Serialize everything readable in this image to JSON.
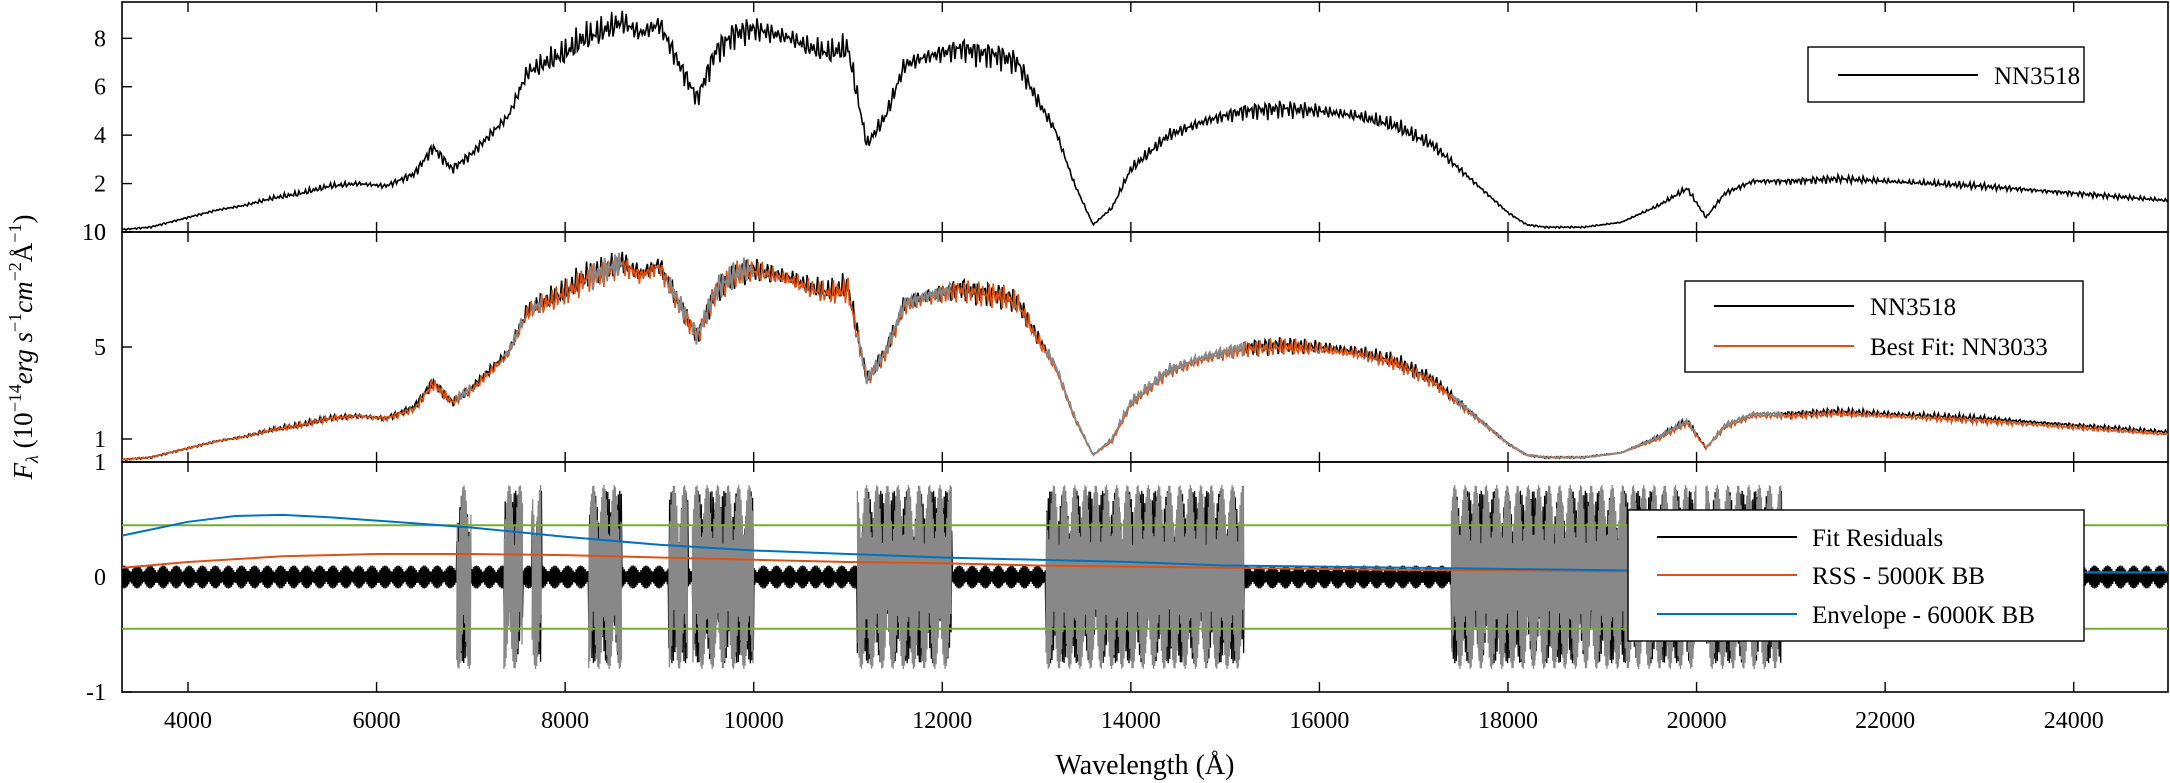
{
  "chart_data": [
    {
      "panel": "top",
      "type": "line",
      "xlim": [
        3300,
        25000
      ],
      "ylim": [
        0,
        9.5
      ],
      "yticks": [
        "0",
        "2",
        "4",
        "6",
        "8"
      ],
      "legend": {
        "placement": "top-right",
        "entries": [
          "NN3518"
        ]
      },
      "colors": {
        "NN3518": "#000000"
      },
      "series": [
        {
          "name": "NN3518",
          "x": [
            3300,
            3600,
            3900,
            4100,
            4300,
            4600,
            4900,
            5200,
            5500,
            5800,
            6100,
            6400,
            6600,
            6800,
            7000,
            7200,
            7400,
            7600,
            7800,
            8000,
            8200,
            8400,
            8600,
            8800,
            9000,
            9200,
            9400,
            9600,
            9800,
            10000,
            10200,
            10400,
            10600,
            10800,
            11000,
            11200,
            11400,
            11600,
            11800,
            12000,
            12200,
            12400,
            12600,
            12800,
            13000,
            13200,
            13400,
            13600,
            13800,
            14000,
            14400,
            14800,
            15200,
            15600,
            16000,
            16400,
            16800,
            17200,
            17600,
            18000,
            18200,
            18400,
            18800,
            19200,
            19600,
            19900,
            20100,
            20300,
            20600,
            21000,
            21500,
            22000,
            23000,
            24000,
            25000
          ],
          "y": [
            0.1,
            0.2,
            0.5,
            0.7,
            0.9,
            1.1,
            1.4,
            1.6,
            1.9,
            2.0,
            1.9,
            2.4,
            3.5,
            2.6,
            3.2,
            4.0,
            4.8,
            6.6,
            7.0,
            7.4,
            8.0,
            8.3,
            8.7,
            8.2,
            8.6,
            7.0,
            5.5,
            7.5,
            8.2,
            8.4,
            8.2,
            8.0,
            7.6,
            7.4,
            7.6,
            3.6,
            4.8,
            6.9,
            7.2,
            7.4,
            7.6,
            7.4,
            7.3,
            7.0,
            5.5,
            4.2,
            2.0,
            0.3,
            1.0,
            2.6,
            4.0,
            4.6,
            5.0,
            5.1,
            5.0,
            4.8,
            4.4,
            3.6,
            2.2,
            0.8,
            0.3,
            0.2,
            0.2,
            0.4,
            1.1,
            1.8,
            0.6,
            1.6,
            2.1,
            2.1,
            2.2,
            2.1,
            1.9,
            1.6,
            1.3
          ]
        }
      ]
    },
    {
      "panel": "middle",
      "type": "line",
      "xlim": [
        3300,
        25000
      ],
      "ylim": [
        0,
        10
      ],
      "yticks": [
        "1",
        "5",
        "10"
      ],
      "legend": {
        "placement": "top-right",
        "entries": [
          "NN3518",
          "Best Fit: NN3033"
        ]
      },
      "colors": {
        "NN3518": "#000000",
        "Best Fit: NN3033": "#d95319",
        "masked": "#888888"
      },
      "series": [
        {
          "name": "NN3518",
          "x": [
            3300,
            3600,
            3900,
            4100,
            4300,
            4600,
            4900,
            5200,
            5500,
            5800,
            6100,
            6400,
            6600,
            6800,
            7000,
            7200,
            7400,
            7600,
            7800,
            8000,
            8200,
            8400,
            8600,
            8800,
            9000,
            9200,
            9400,
            9600,
            9800,
            10000,
            10200,
            10400,
            10600,
            10800,
            11000,
            11200,
            11400,
            11600,
            11800,
            12000,
            12200,
            12400,
            12600,
            12800,
            13000,
            13200,
            13400,
            13600,
            13800,
            14000,
            14400,
            14800,
            15200,
            15600,
            16000,
            16400,
            16800,
            17200,
            17600,
            18000,
            18200,
            18400,
            18800,
            19200,
            19600,
            19900,
            20100,
            20300,
            20600,
            21000,
            21500,
            22000,
            23000,
            24000,
            25000
          ],
          "y": [
            0.1,
            0.2,
            0.5,
            0.7,
            0.9,
            1.1,
            1.4,
            1.6,
            1.9,
            2.0,
            1.9,
            2.4,
            3.5,
            2.6,
            3.2,
            4.0,
            4.8,
            6.6,
            7.0,
            7.4,
            8.0,
            8.3,
            8.7,
            8.2,
            8.6,
            7.0,
            5.5,
            7.5,
            8.2,
            8.4,
            8.2,
            8.0,
            7.6,
            7.4,
            7.6,
            3.6,
            4.8,
            6.9,
            7.2,
            7.4,
            7.6,
            7.4,
            7.3,
            7.0,
            5.5,
            4.2,
            2.0,
            0.3,
            1.0,
            2.6,
            4.0,
            4.6,
            5.0,
            5.1,
            5.0,
            4.8,
            4.4,
            3.6,
            2.2,
            0.8,
            0.3,
            0.2,
            0.2,
            0.4,
            1.1,
            1.8,
            0.6,
            1.6,
            2.1,
            2.1,
            2.2,
            2.1,
            1.9,
            1.6,
            1.3
          ]
        },
        {
          "name": "Best Fit: NN3033",
          "x": [
            3300,
            3600,
            3900,
            4100,
            4300,
            4600,
            4900,
            5200,
            5500,
            5800,
            6100,
            6400,
            6600,
            6800,
            7000,
            7200,
            7400,
            7600,
            7800,
            8000,
            8200,
            8400,
            8600,
            8800,
            9000,
            9200,
            9400,
            9600,
            9800,
            10000,
            10200,
            10400,
            10600,
            10800,
            11000,
            11200,
            11400,
            11600,
            11800,
            12000,
            12200,
            12400,
            12600,
            12800,
            13000,
            13200,
            13400,
            13600,
            13800,
            14000,
            14400,
            14800,
            15200,
            15600,
            16000,
            16400,
            16800,
            17200,
            17600,
            18000,
            18200,
            18400,
            18800,
            19200,
            19600,
            19900,
            20100,
            20300,
            20600,
            21000,
            21500,
            22000,
            23000,
            24000,
            25000
          ],
          "y": [
            0.1,
            0.2,
            0.5,
            0.7,
            0.9,
            1.1,
            1.4,
            1.6,
            1.9,
            2.0,
            1.9,
            2.3,
            3.4,
            2.6,
            3.1,
            3.9,
            4.7,
            6.5,
            6.9,
            7.3,
            7.9,
            8.2,
            8.6,
            8.1,
            8.5,
            6.9,
            5.4,
            7.4,
            8.1,
            8.3,
            8.1,
            7.9,
            7.5,
            7.3,
            7.5,
            3.5,
            4.7,
            6.8,
            7.1,
            7.3,
            7.5,
            7.3,
            7.2,
            6.9,
            5.4,
            4.1,
            1.9,
            0.3,
            0.9,
            2.5,
            3.9,
            4.5,
            4.9,
            5.0,
            4.9,
            4.7,
            4.3,
            3.5,
            2.1,
            0.8,
            0.3,
            0.2,
            0.2,
            0.4,
            1.0,
            1.7,
            0.6,
            1.5,
            2.0,
            2.0,
            2.1,
            2.0,
            1.8,
            1.5,
            1.2
          ]
        }
      ],
      "masked_regions": [
        [
          6850,
          7000
        ],
        [
          7350,
          7550
        ],
        [
          7650,
          7750
        ],
        [
          8250,
          8600
        ],
        [
          9100,
          9300
        ],
        [
          9350,
          10000
        ],
        [
          11100,
          12100
        ],
        [
          13100,
          15200
        ],
        [
          17400,
          20000
        ],
        [
          20100,
          20900
        ]
      ]
    },
    {
      "panel": "bottom",
      "type": "line",
      "xlim": [
        3300,
        25000
      ],
      "ylim": [
        -1,
        1
      ],
      "yticks": [
        "-1",
        "0",
        "1"
      ],
      "hlines": [
        0.45,
        -0.45
      ],
      "legend": {
        "placement": "right",
        "entries": [
          "Fit Residuals",
          "RSS - 5000K BB",
          "Envelope - 6000K BB"
        ]
      },
      "colors": {
        "Fit Residuals": "#000000",
        "RSS - 5000K BB": "#d95319",
        "Envelope - 6000K BB": "#0072bd",
        "threshold": "#77ac30",
        "masked": "#888888"
      },
      "series": [
        {
          "name": "RSS - 5000K BB",
          "x": [
            3300,
            4000,
            5000,
            6000,
            7000,
            8000,
            9000,
            10000,
            11000,
            12000,
            13000,
            14000,
            15000,
            16000,
            17000,
            18000,
            19000,
            20000,
            22000,
            25000
          ],
          "y": [
            0.08,
            0.13,
            0.18,
            0.2,
            0.2,
            0.19,
            0.17,
            0.15,
            0.13,
            0.12,
            0.1,
            0.09,
            0.08,
            0.07,
            0.06,
            0.06,
            0.05,
            0.05,
            0.04,
            0.04
          ]
        },
        {
          "name": "Envelope - 6000K BB",
          "x": [
            3300,
            4000,
            4500,
            5000,
            5500,
            6000,
            7000,
            8000,
            9000,
            10000,
            11000,
            12000,
            13000,
            14000,
            15000,
            16000,
            17000,
            18000,
            19000,
            20000,
            22000,
            25000
          ],
          "y": [
            0.36,
            0.48,
            0.53,
            0.54,
            0.52,
            0.49,
            0.43,
            0.35,
            0.28,
            0.23,
            0.2,
            0.17,
            0.15,
            0.13,
            0.1,
            0.09,
            0.08,
            0.07,
            0.06,
            0.05,
            0.04,
            0.04
          ]
        },
        {
          "name": "Fit Residuals",
          "x": [
            3300,
            5000,
            7000,
            9000,
            11000,
            13000,
            15000,
            17000,
            19000,
            21000,
            23000,
            25000
          ],
          "y": [
            0,
            0,
            0,
            0,
            0,
            0,
            0,
            0,
            0,
            0,
            0,
            0
          ]
        }
      ],
      "masked_regions": [
        [
          6850,
          7000
        ],
        [
          7350,
          7550
        ],
        [
          7650,
          7750
        ],
        [
          8250,
          8600
        ],
        [
          9100,
          9300
        ],
        [
          9350,
          10000
        ],
        [
          11100,
          12100
        ],
        [
          13100,
          15200
        ],
        [
          17400,
          20000
        ],
        [
          20100,
          20900
        ]
      ]
    }
  ],
  "axes": {
    "xticks": [
      "4000",
      "6000",
      "8000",
      "10000",
      "12000",
      "14000",
      "16000",
      "18000",
      "20000",
      "22000",
      "24000"
    ],
    "xlabel": "Wavelength (Å)",
    "ylabel": "F_λ (10^-14 erg s^-1 cm^-2 Å^-1)"
  }
}
